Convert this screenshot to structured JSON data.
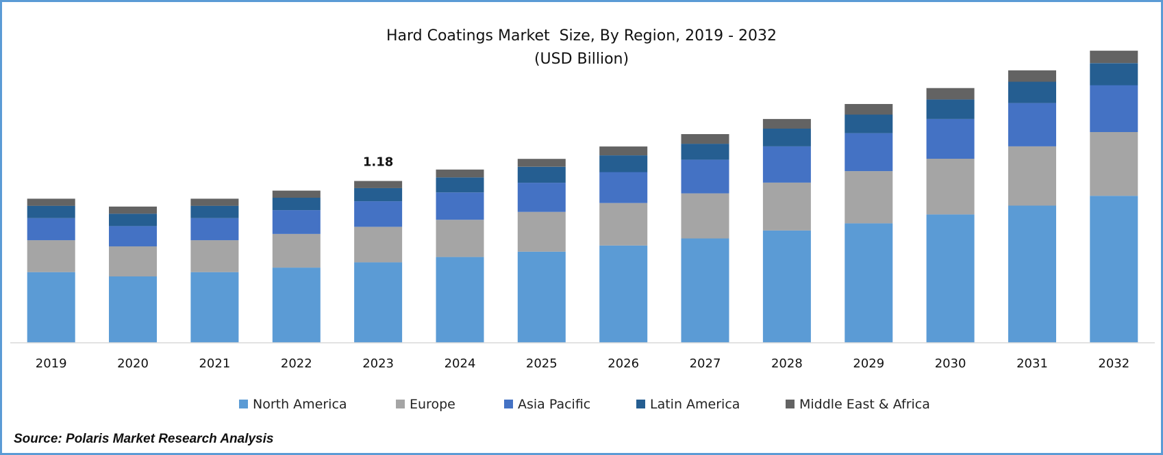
{
  "chart_data": {
    "type": "bar",
    "stacked": true,
    "title": "Hard Coatings Market  Size, By Region, 2019 - 2032",
    "subtitle": "(USD Billion)",
    "categories": [
      "2019",
      "2020",
      "2021",
      "2022",
      "2023",
      "2024",
      "2025",
      "2026",
      "2027",
      "2028",
      "2029",
      "2030",
      "2031",
      "2032"
    ],
    "series": [
      {
        "name": "North America",
        "color": "#5B9BD5",
        "values": [
          0.519,
          0.487,
          0.519,
          0.552,
          0.591,
          0.63,
          0.669,
          0.714,
          0.766,
          0.825,
          0.877,
          0.942,
          1.007,
          1.079
        ]
      },
      {
        "name": "Europe",
        "color": "#A5A5A5",
        "values": [
          0.234,
          0.221,
          0.234,
          0.247,
          0.26,
          0.273,
          0.292,
          0.312,
          0.331,
          0.351,
          0.383,
          0.409,
          0.435,
          0.468
        ]
      },
      {
        "name": "Asia Pacific",
        "color": "#4472C4",
        "values": [
          0.162,
          0.149,
          0.162,
          0.175,
          0.188,
          0.201,
          0.214,
          0.227,
          0.247,
          0.266,
          0.279,
          0.292,
          0.318,
          0.344
        ]
      },
      {
        "name": "Latin America",
        "color": "#255E91",
        "values": [
          0.091,
          0.091,
          0.091,
          0.091,
          0.097,
          0.11,
          0.117,
          0.123,
          0.117,
          0.13,
          0.136,
          0.143,
          0.156,
          0.162
        ]
      },
      {
        "name": "Middle East & Africa",
        "color": "#636363",
        "values": [
          0.052,
          0.052,
          0.052,
          0.052,
          0.052,
          0.058,
          0.058,
          0.065,
          0.071,
          0.071,
          0.078,
          0.084,
          0.084,
          0.091
        ]
      }
    ],
    "data_labels": [
      {
        "category": "2023",
        "text": "1.18"
      }
    ],
    "ylim": [
      0,
      2.2
    ],
    "y_axis_visible": false,
    "grid": false,
    "legend_position": "bottom"
  },
  "source": "Source: Polaris Market Research Analysis"
}
